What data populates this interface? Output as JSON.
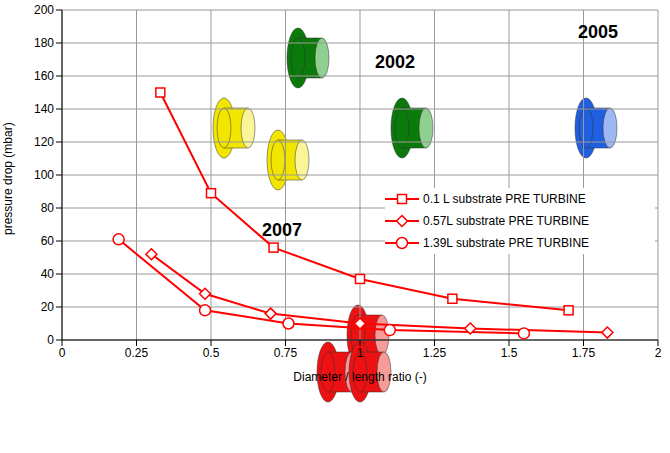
{
  "chart_data": {
    "type": "line",
    "x_label": "Diameter / length ratio (-)",
    "y_label": "pressure drop (mbar)",
    "xlim": [
      0,
      2
    ],
    "xticks": [
      0,
      0.25,
      0.5,
      0.75,
      1,
      1.25,
      1.5,
      1.75,
      2
    ],
    "ylim": [
      0,
      200
    ],
    "yticks": [
      0,
      20,
      40,
      60,
      80,
      100,
      120,
      140,
      160,
      180,
      200
    ],
    "grid": true,
    "legend": "right",
    "annotations": [
      "2002",
      "2005",
      "2007"
    ],
    "series": [
      {
        "name": "0.1 L substrate PRE TURBINE",
        "color": "#ff0000",
        "marker": "square",
        "x": [
          0.33,
          0.5,
          0.71,
          1.0,
          1.31,
          1.7
        ],
        "values": [
          150,
          89,
          56,
          37,
          25,
          18
        ]
      },
      {
        "name": "0.57L substrate PRE TURBINE",
        "color": "#ff0000",
        "marker": "diamond",
        "x": [
          0.3,
          0.48,
          0.7,
          1.0,
          1.37,
          1.83
        ],
        "values": [
          52,
          28,
          16,
          10,
          7,
          4.5
        ]
      },
      {
        "name": "1.39L substrate PRE TURBINE",
        "color": "#ff0000",
        "marker": "circle",
        "x": [
          0.19,
          0.48,
          0.76,
          1.1,
          1.55
        ],
        "values": [
          61,
          18,
          10,
          6,
          4
        ]
      }
    ]
  }
}
